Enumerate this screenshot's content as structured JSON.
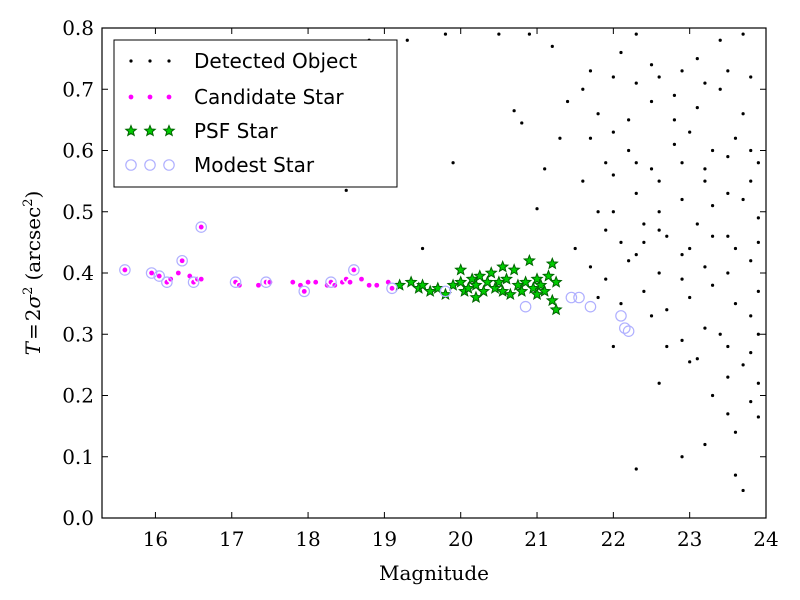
{
  "chart_data": {
    "type": "scatter",
    "xlabel": "Magnitude",
    "ylabel_math": {
      "T": "T",
      "eq": "=",
      "two": "2",
      "sigma": "σ",
      "exp": "2",
      "unit_open": "(arcsec",
      "unit_exp": "2",
      "unit_close": ")"
    },
    "xlim": [
      15.3,
      24.0
    ],
    "ylim": [
      0.0,
      0.8
    ],
    "xticks": [
      "16",
      "17",
      "18",
      "19",
      "20",
      "21",
      "22",
      "23",
      "24"
    ],
    "yticks": [
      "0.0",
      "0.1",
      "0.2",
      "0.3",
      "0.4",
      "0.5",
      "0.6",
      "0.7",
      "0.8"
    ],
    "legend_position": "top-left",
    "grid": false,
    "colors": {
      "detected": "#000000",
      "candidate_fill": "#ff00ff",
      "psf_fill": "#00cc00",
      "psf_edge": "#006400",
      "modest_edge": "#b0b0ff"
    },
    "series": [
      {
        "name": "Detected Object",
        "marker": "dot",
        "points": [
          [
            16.6,
            0.475
          ],
          [
            18.5,
            0.535
          ],
          [
            19.5,
            0.44
          ],
          [
            19.9,
            0.58
          ],
          [
            20.7,
            0.665
          ],
          [
            20.8,
            0.645
          ],
          [
            21.0,
            0.505
          ],
          [
            21.8,
            0.5
          ],
          [
            22.3,
            0.08
          ],
          [
            22.9,
            0.1
          ],
          [
            23.2,
            0.12
          ],
          [
            23.6,
            0.14
          ],
          [
            23.5,
            0.17
          ],
          [
            23.7,
            0.045
          ],
          [
            23.6,
            0.07
          ],
          [
            23.8,
            0.19
          ],
          [
            23.9,
            0.165
          ],
          [
            23.9,
            0.22
          ],
          [
            23.3,
            0.2
          ],
          [
            23.1,
            0.26
          ],
          [
            23.0,
            0.255
          ],
          [
            22.7,
            0.28
          ],
          [
            22.5,
            0.33
          ],
          [
            23.4,
            0.3
          ],
          [
            23.7,
            0.25
          ],
          [
            23.5,
            0.28
          ],
          [
            23.8,
            0.33
          ],
          [
            23.9,
            0.3
          ],
          [
            21.1,
            0.57
          ],
          [
            21.3,
            0.62
          ],
          [
            21.4,
            0.68
          ],
          [
            21.6,
            0.7
          ],
          [
            21.8,
            0.66
          ],
          [
            22.0,
            0.72
          ],
          [
            22.1,
            0.76
          ],
          [
            22.3,
            0.79
          ],
          [
            22.5,
            0.74
          ],
          [
            22.8,
            0.69
          ],
          [
            23.1,
            0.75
          ],
          [
            23.4,
            0.78
          ],
          [
            23.7,
            0.79
          ],
          [
            21.5,
            0.44
          ],
          [
            21.7,
            0.41
          ],
          [
            21.9,
            0.39
          ],
          [
            22.2,
            0.42
          ],
          [
            22.4,
            0.45
          ],
          [
            22.6,
            0.47
          ],
          [
            22.9,
            0.43
          ],
          [
            23.1,
            0.48
          ],
          [
            23.3,
            0.51
          ],
          [
            23.5,
            0.46
          ],
          [
            23.7,
            0.52
          ],
          [
            23.9,
            0.49
          ],
          [
            21.6,
            0.55
          ],
          [
            21.9,
            0.58
          ],
          [
            22.2,
            0.6
          ],
          [
            22.5,
            0.57
          ],
          [
            22.8,
            0.61
          ],
          [
            23.0,
            0.63
          ],
          [
            23.3,
            0.6
          ],
          [
            23.6,
            0.62
          ],
          [
            23.9,
            0.58
          ],
          [
            22.0,
            0.5
          ],
          [
            22.3,
            0.53
          ],
          [
            22.6,
            0.5
          ],
          [
            22.9,
            0.52
          ],
          [
            23.2,
            0.55
          ],
          [
            23.5,
            0.53
          ],
          [
            23.8,
            0.55
          ],
          [
            21.8,
            0.36
          ],
          [
            22.1,
            0.35
          ],
          [
            22.4,
            0.37
          ],
          [
            22.7,
            0.34
          ],
          [
            23.0,
            0.36
          ],
          [
            23.3,
            0.38
          ],
          [
            23.6,
            0.35
          ],
          [
            23.9,
            0.37
          ],
          [
            22.2,
            0.65
          ],
          [
            22.5,
            0.68
          ],
          [
            22.8,
            0.65
          ],
          [
            23.1,
            0.67
          ],
          [
            23.4,
            0.7
          ],
          [
            23.7,
            0.66
          ],
          [
            20.9,
            0.79
          ],
          [
            21.2,
            0.77
          ],
          [
            20.5,
            0.79
          ],
          [
            19.8,
            0.79
          ],
          [
            19.3,
            0.78
          ],
          [
            18.8,
            0.78
          ],
          [
            21.7,
            0.73
          ],
          [
            22.0,
            0.28
          ],
          [
            22.6,
            0.22
          ],
          [
            22.9,
            0.29
          ],
          [
            23.2,
            0.31
          ],
          [
            23.5,
            0.23
          ],
          [
            23.8,
            0.27
          ],
          [
            22.3,
            0.43
          ],
          [
            22.6,
            0.4
          ],
          [
            22.9,
            0.39
          ],
          [
            23.2,
            0.41
          ],
          [
            23.5,
            0.4
          ],
          [
            23.8,
            0.42
          ],
          [
            21.9,
            0.47
          ],
          [
            22.1,
            0.45
          ],
          [
            22.4,
            0.48
          ],
          [
            22.7,
            0.46
          ],
          [
            23.0,
            0.44
          ],
          [
            23.3,
            0.46
          ],
          [
            23.6,
            0.44
          ],
          [
            23.9,
            0.45
          ],
          [
            22.0,
            0.56
          ],
          [
            22.3,
            0.58
          ],
          [
            22.6,
            0.55
          ],
          [
            22.9,
            0.58
          ],
          [
            23.2,
            0.57
          ],
          [
            23.5,
            0.59
          ],
          [
            23.8,
            0.6
          ],
          [
            21.7,
            0.62
          ],
          [
            22.0,
            0.63
          ],
          [
            22.3,
            0.71
          ],
          [
            22.6,
            0.72
          ],
          [
            22.9,
            0.73
          ],
          [
            23.2,
            0.71
          ],
          [
            23.5,
            0.73
          ],
          [
            23.8,
            0.72
          ]
        ]
      },
      {
        "name": "Candidate Star",
        "marker": "circle-small",
        "points": [
          [
            15.6,
            0.405
          ],
          [
            15.95,
            0.4
          ],
          [
            16.05,
            0.395
          ],
          [
            16.15,
            0.385
          ],
          [
            16.2,
            0.39
          ],
          [
            16.3,
            0.4
          ],
          [
            16.35,
            0.42
          ],
          [
            16.45,
            0.395
          ],
          [
            16.5,
            0.385
          ],
          [
            16.55,
            0.39
          ],
          [
            16.6,
            0.39
          ],
          [
            17.05,
            0.385
          ],
          [
            17.1,
            0.38
          ],
          [
            17.35,
            0.38
          ],
          [
            17.45,
            0.385
          ],
          [
            17.5,
            0.385
          ],
          [
            17.8,
            0.385
          ],
          [
            17.9,
            0.38
          ],
          [
            17.95,
            0.37
          ],
          [
            18.0,
            0.385
          ],
          [
            18.1,
            0.385
          ],
          [
            18.25,
            0.38
          ],
          [
            18.3,
            0.385
          ],
          [
            18.35,
            0.38
          ],
          [
            18.45,
            0.385
          ],
          [
            18.5,
            0.39
          ],
          [
            18.55,
            0.385
          ],
          [
            18.6,
            0.405
          ],
          [
            18.7,
            0.39
          ],
          [
            18.8,
            0.38
          ],
          [
            18.9,
            0.38
          ],
          [
            19.05,
            0.385
          ],
          [
            19.1,
            0.375
          ],
          [
            16.6,
            0.475
          ]
        ]
      },
      {
        "name": "PSF Star",
        "marker": "star",
        "points": [
          [
            19.2,
            0.38
          ],
          [
            19.35,
            0.385
          ],
          [
            19.45,
            0.375
          ],
          [
            19.5,
            0.38
          ],
          [
            19.6,
            0.37
          ],
          [
            19.7,
            0.375
          ],
          [
            19.8,
            0.365
          ],
          [
            19.9,
            0.38
          ],
          [
            20.0,
            0.385
          ],
          [
            20.05,
            0.37
          ],
          [
            20.1,
            0.375
          ],
          [
            20.15,
            0.39
          ],
          [
            20.2,
            0.38
          ],
          [
            20.25,
            0.395
          ],
          [
            20.3,
            0.37
          ],
          [
            20.35,
            0.385
          ],
          [
            20.4,
            0.4
          ],
          [
            20.45,
            0.375
          ],
          [
            20.5,
            0.385
          ],
          [
            20.55,
            0.37
          ],
          [
            20.6,
            0.39
          ],
          [
            20.65,
            0.365
          ],
          [
            20.7,
            0.405
          ],
          [
            20.75,
            0.38
          ],
          [
            20.8,
            0.37
          ],
          [
            20.85,
            0.385
          ],
          [
            20.9,
            0.42
          ],
          [
            20.95,
            0.375
          ],
          [
            21.0,
            0.39
          ],
          [
            21.05,
            0.38
          ],
          [
            21.1,
            0.37
          ],
          [
            21.15,
            0.395
          ],
          [
            21.2,
            0.415
          ],
          [
            21.25,
            0.385
          ],
          [
            21.2,
            0.355
          ],
          [
            21.25,
            0.34
          ],
          [
            20.0,
            0.405
          ],
          [
            20.2,
            0.36
          ],
          [
            20.55,
            0.41
          ],
          [
            21.0,
            0.365
          ]
        ]
      },
      {
        "name": "Modest Star",
        "marker": "circle-open",
        "points": [
          [
            15.6,
            0.405
          ],
          [
            15.95,
            0.4
          ],
          [
            16.05,
            0.395
          ],
          [
            16.15,
            0.385
          ],
          [
            16.35,
            0.42
          ],
          [
            16.5,
            0.385
          ],
          [
            16.6,
            0.475
          ],
          [
            17.05,
            0.385
          ],
          [
            17.45,
            0.385
          ],
          [
            17.95,
            0.37
          ],
          [
            18.3,
            0.385
          ],
          [
            18.6,
            0.405
          ],
          [
            19.1,
            0.375
          ],
          [
            19.8,
            0.37
          ],
          [
            20.85,
            0.345
          ],
          [
            21.45,
            0.36
          ],
          [
            21.55,
            0.36
          ],
          [
            21.7,
            0.345
          ],
          [
            22.1,
            0.33
          ],
          [
            22.15,
            0.31
          ],
          [
            22.2,
            0.305
          ]
        ]
      }
    ]
  }
}
